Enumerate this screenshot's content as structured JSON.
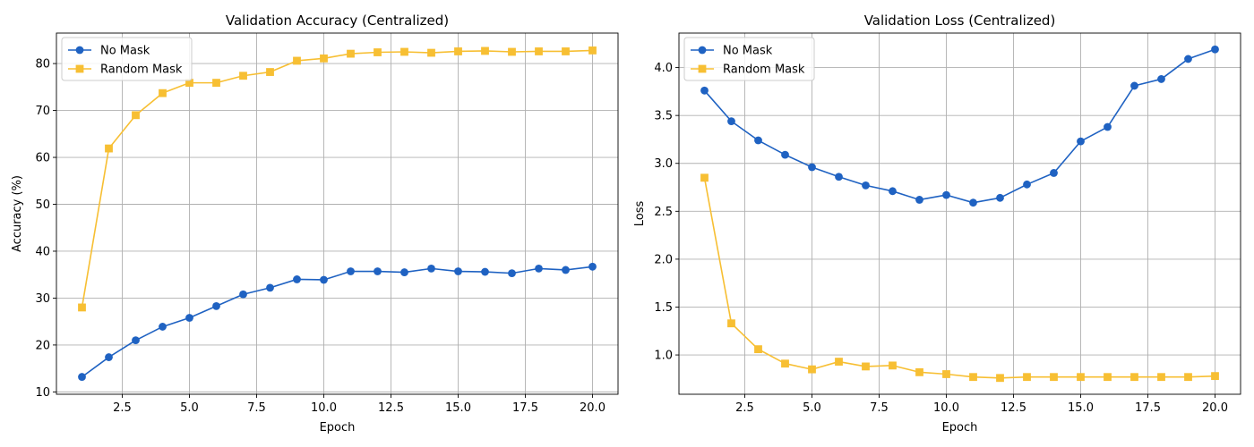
{
  "chart_data": [
    {
      "type": "line",
      "title": "Validation Accuracy (Centralized)",
      "xlabel": "Epoch",
      "ylabel": "Accuracy (%)",
      "xlim": [
        0.05,
        20.95
      ],
      "ylim": [
        9.5,
        86.5
      ],
      "xticks": [
        2.5,
        5.0,
        7.5,
        10.0,
        12.5,
        15.0,
        17.5,
        20.0
      ],
      "xtick_labels": [
        "2.5",
        "5.0",
        "7.5",
        "10.0",
        "12.5",
        "15.0",
        "17.5",
        "20.0"
      ],
      "yticks": [
        10,
        20,
        30,
        40,
        50,
        60,
        70,
        80
      ],
      "ytick_labels": [
        "10",
        "20",
        "30",
        "40",
        "50",
        "60",
        "70",
        "80"
      ],
      "grid": true,
      "legend": "top-left",
      "x": [
        1,
        2,
        3,
        4,
        5,
        6,
        7,
        8,
        9,
        10,
        11,
        12,
        13,
        14,
        15,
        16,
        17,
        18,
        19,
        20
      ],
      "series": [
        {
          "name": "No Mask",
          "color": "#1f62c2",
          "marker": "circle",
          "values": [
            13.2,
            17.4,
            21.0,
            23.9,
            25.8,
            28.3,
            30.8,
            32.2,
            34.0,
            33.9,
            35.7,
            35.7,
            35.5,
            36.3,
            35.7,
            35.6,
            35.3,
            36.3,
            36.0,
            36.7
          ]
        },
        {
          "name": "Random Mask",
          "color": "#f7bf33",
          "marker": "square",
          "values": [
            28.0,
            61.9,
            69.0,
            73.7,
            75.9,
            75.9,
            77.4,
            78.2,
            80.6,
            81.1,
            82.1,
            82.4,
            82.5,
            82.3,
            82.6,
            82.7,
            82.5,
            82.6,
            82.6,
            82.8
          ]
        }
      ]
    },
    {
      "type": "line",
      "title": "Validation Loss (Centralized)",
      "xlabel": "Epoch",
      "ylabel": "Loss",
      "xlim": [
        0.05,
        20.95
      ],
      "ylim": [
        0.59,
        4.36
      ],
      "xticks": [
        2.5,
        5.0,
        7.5,
        10.0,
        12.5,
        15.0,
        17.5,
        20.0
      ],
      "xtick_labels": [
        "2.5",
        "5.0",
        "7.5",
        "10.0",
        "12.5",
        "15.0",
        "17.5",
        "20.0"
      ],
      "yticks": [
        1.0,
        1.5,
        2.0,
        2.5,
        3.0,
        3.5,
        4.0
      ],
      "ytick_labels": [
        "1.0",
        "1.5",
        "2.0",
        "2.5",
        "3.0",
        "3.5",
        "4.0"
      ],
      "grid": true,
      "legend": "top-left",
      "x": [
        1,
        2,
        3,
        4,
        5,
        6,
        7,
        8,
        9,
        10,
        11,
        12,
        13,
        14,
        15,
        16,
        17,
        18,
        19,
        20
      ],
      "series": [
        {
          "name": "No Mask",
          "color": "#1f62c2",
          "marker": "circle",
          "values": [
            3.76,
            3.44,
            3.24,
            3.09,
            2.96,
            2.86,
            2.77,
            2.71,
            2.62,
            2.67,
            2.59,
            2.64,
            2.78,
            2.9,
            3.23,
            3.38,
            3.81,
            3.88,
            4.09,
            4.19
          ]
        },
        {
          "name": "Random Mask",
          "color": "#f7bf33",
          "marker": "square",
          "values": [
            2.85,
            1.33,
            1.06,
            0.91,
            0.85,
            0.93,
            0.88,
            0.89,
            0.82,
            0.8,
            0.77,
            0.76,
            0.77,
            0.77,
            0.77,
            0.77,
            0.77,
            0.77,
            0.77,
            0.78
          ]
        }
      ]
    }
  ]
}
